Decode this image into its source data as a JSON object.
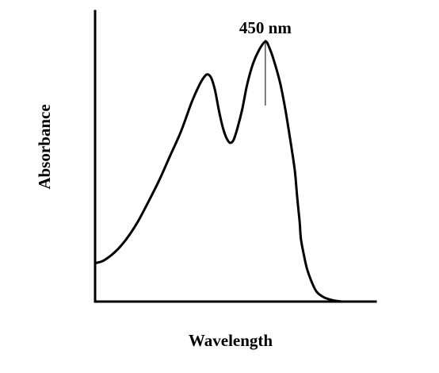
{
  "chart_data": {
    "type": "line",
    "title": "",
    "xlabel": "Wavelength",
    "ylabel": "Absorbance",
    "x_ticks": false,
    "y_ticks": false,
    "grid": false,
    "legend": "none",
    "annotation": {
      "text": "450 nm",
      "x": 450
    },
    "xlim": [
      311,
      540
    ],
    "ylim": [
      0,
      1
    ],
    "series": [
      {
        "x": [
          311,
          318,
          327,
          336,
          345,
          354,
          363,
          372,
          381,
          390,
          396,
          400,
          403,
          406,
          409,
          412,
          415,
          418,
          421,
          424,
          427,
          431,
          435,
          440,
          445,
          450,
          453,
          457,
          462,
          466,
          470,
          474,
          476,
          478,
          479,
          481,
          484,
          488,
          492,
          498,
          505,
          512
        ],
        "y": [
          0.14,
          0.15,
          0.18,
          0.225,
          0.285,
          0.36,
          0.44,
          0.53,
          0.62,
          0.73,
          0.79,
          0.82,
          0.83,
          0.815,
          0.77,
          0.7,
          0.64,
          0.6,
          0.58,
          0.59,
          0.63,
          0.7,
          0.79,
          0.87,
          0.92,
          0.95,
          0.93,
          0.88,
          0.8,
          0.71,
          0.6,
          0.48,
          0.38,
          0.29,
          0.23,
          0.18,
          0.12,
          0.07,
          0.035,
          0.015,
          0.005,
          0.0
        ]
      }
    ]
  }
}
